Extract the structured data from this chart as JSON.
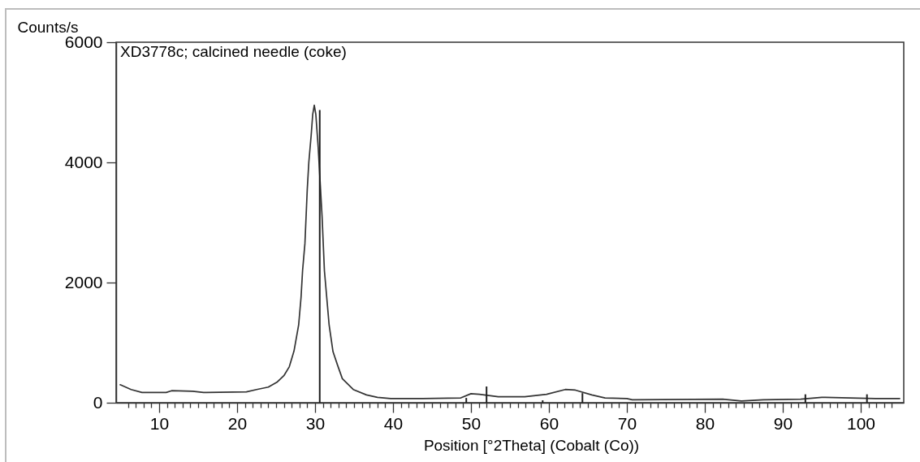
{
  "chart_data": {
    "type": "line",
    "title": "XD3778c; calcined needle (coke)",
    "xlabel": "Position [°2Theta] (Cobalt (Co))",
    "ylabel": "Counts/s",
    "xlim": [
      5,
      105
    ],
    "ylim": [
      0,
      6000
    ],
    "xticks": [
      {
        "value": 6,
        "label": null
      },
      {
        "value": 7,
        "label": null
      },
      {
        "value": 8,
        "label": null
      },
      {
        "value": 9,
        "label": null
      },
      10,
      {
        "value": 11,
        "label": null
      },
      {
        "value": 12,
        "label": null
      },
      {
        "value": 13,
        "label": null
      },
      {
        "value": 14,
        "label": null
      },
      {
        "value": 15,
        "label": null
      },
      {
        "value": 16,
        "label": null
      },
      {
        "value": 17,
        "label": null
      },
      {
        "value": 18,
        "label": null
      },
      {
        "value": 19,
        "label": null
      },
      20,
      {
        "value": 21,
        "label": null
      },
      {
        "value": 22,
        "label": null
      },
      {
        "value": 23,
        "label": null
      },
      {
        "value": 24,
        "label": null
      },
      {
        "value": 25,
        "label": null
      },
      {
        "value": 26,
        "label": null
      },
      {
        "value": 27,
        "label": null
      },
      {
        "value": 28,
        "label": null
      },
      {
        "value": 29,
        "label": null
      },
      30,
      {
        "value": 31,
        "label": null
      },
      {
        "value": 32,
        "label": null
      },
      {
        "value": 33,
        "label": null
      },
      {
        "value": 34,
        "label": null
      },
      {
        "value": 35,
        "label": null
      },
      {
        "value": 36,
        "label": null
      },
      {
        "value": 37,
        "label": null
      },
      {
        "value": 38,
        "label": null
      },
      {
        "value": 39,
        "label": null
      },
      40,
      {
        "value": 41,
        "label": null
      },
      {
        "value": 42,
        "label": null
      },
      {
        "value": 43,
        "label": null
      },
      {
        "value": 44,
        "label": null
      },
      {
        "value": 45,
        "label": null
      },
      {
        "value": 46,
        "label": null
      },
      {
        "value": 47,
        "label": null
      },
      {
        "value": 48,
        "label": null
      },
      {
        "value": 49,
        "label": null
      },
      50,
      {
        "value": 51,
        "label": null
      },
      {
        "value": 52,
        "label": null
      },
      {
        "value": 53,
        "label": null
      },
      {
        "value": 54,
        "label": null
      },
      {
        "value": 55,
        "label": null
      },
      {
        "value": 56,
        "label": null
      },
      {
        "value": 57,
        "label": null
      },
      {
        "value": 58,
        "label": null
      },
      {
        "value": 59,
        "label": null
      },
      60,
      {
        "value": 61,
        "label": null
      },
      {
        "value": 62,
        "label": null
      },
      {
        "value": 63,
        "label": null
      },
      {
        "value": 64,
        "label": null
      },
      {
        "value": 65,
        "label": null
      },
      {
        "value": 66,
        "label": null
      },
      {
        "value": 67,
        "label": null
      },
      {
        "value": 68,
        "label": null
      },
      {
        "value": 69,
        "label": null
      },
      70,
      {
        "value": 71,
        "label": null
      },
      {
        "value": 72,
        "label": null
      },
      {
        "value": 73,
        "label": null
      },
      {
        "value": 74,
        "label": null
      },
      {
        "value": 75,
        "label": null
      },
      {
        "value": 76,
        "label": null
      },
      {
        "value": 77,
        "label": null
      },
      {
        "value": 78,
        "label": null
      },
      {
        "value": 79,
        "label": null
      },
      80,
      {
        "value": 81,
        "label": null
      },
      {
        "value": 82,
        "label": null
      },
      {
        "value": 83,
        "label": null
      },
      {
        "value": 84,
        "label": null
      },
      {
        "value": 85,
        "label": null
      },
      {
        "value": 86,
        "label": null
      },
      {
        "value": 87,
        "label": null
      },
      {
        "value": 88,
        "label": null
      },
      {
        "value": 89,
        "label": null
      },
      90,
      {
        "value": 91,
        "label": null
      },
      {
        "value": 92,
        "label": null
      },
      {
        "value": 93,
        "label": null
      },
      {
        "value": 94,
        "label": null
      },
      {
        "value": 95,
        "label": null
      },
      {
        "value": 96,
        "label": null
      },
      {
        "value": 97,
        "label": null
      },
      {
        "value": 98,
        "label": null
      },
      {
        "value": 99,
        "label": null
      },
      100,
      {
        "value": 101,
        "label": null
      },
      {
        "value": 102,
        "label": null
      },
      {
        "value": 103,
        "label": null
      },
      {
        "value": 104,
        "label": null
      }
    ],
    "yticks": [
      0,
      2000,
      4000,
      6000
    ],
    "series": [
      {
        "color": "#333333",
        "x": [
          5,
          6.4,
          7.8,
          10.9,
          11.6,
          14.3,
          15.7,
          21.2,
          22.5,
          24.0,
          25.1,
          26.0,
          26.7,
          27.3,
          27.9,
          28.2,
          28.4,
          28.7,
          29.0,
          29.2,
          29.5,
          29.7,
          29.9,
          30.1,
          30.4,
          30.9,
          31.2,
          31.8,
          32.3,
          32.9,
          33.5,
          34.9,
          36.6,
          38.0,
          39.7,
          43.8,
          48.7,
          50.0,
          51.1,
          53.5,
          56.9,
          59.7,
          62.1,
          63.4,
          65.5,
          67.2,
          70.0,
          70.7,
          82.3,
          84.7,
          87.5,
          92.3,
          95.0,
          101.9,
          105
        ],
        "values": [
          300,
          220,
          170,
          170,
          200,
          190,
          170,
          180,
          220,
          260,
          340,
          450,
          600,
          860,
          1300,
          1750,
          2200,
          2650,
          3550,
          4000,
          4450,
          4800,
          4950,
          4800,
          4250,
          3100,
          2200,
          1300,
          850,
          620,
          400,
          220,
          130,
          90,
          70,
          70,
          80,
          150,
          140,
          100,
          100,
          140,
          220,
          210,
          130,
          80,
          70,
          50,
          60,
          30,
          50,
          60,
          90,
          70,
          70
        ]
      },
      {
        "type": "bar",
        "color": "#1e1e1e",
        "x": [
          30.6,
          49.4,
          52.0,
          59.2,
          64.3,
          92.9,
          100.8
        ],
        "values": [
          4870,
          80,
          270,
          40,
          160,
          140,
          140
        ]
      }
    ]
  }
}
